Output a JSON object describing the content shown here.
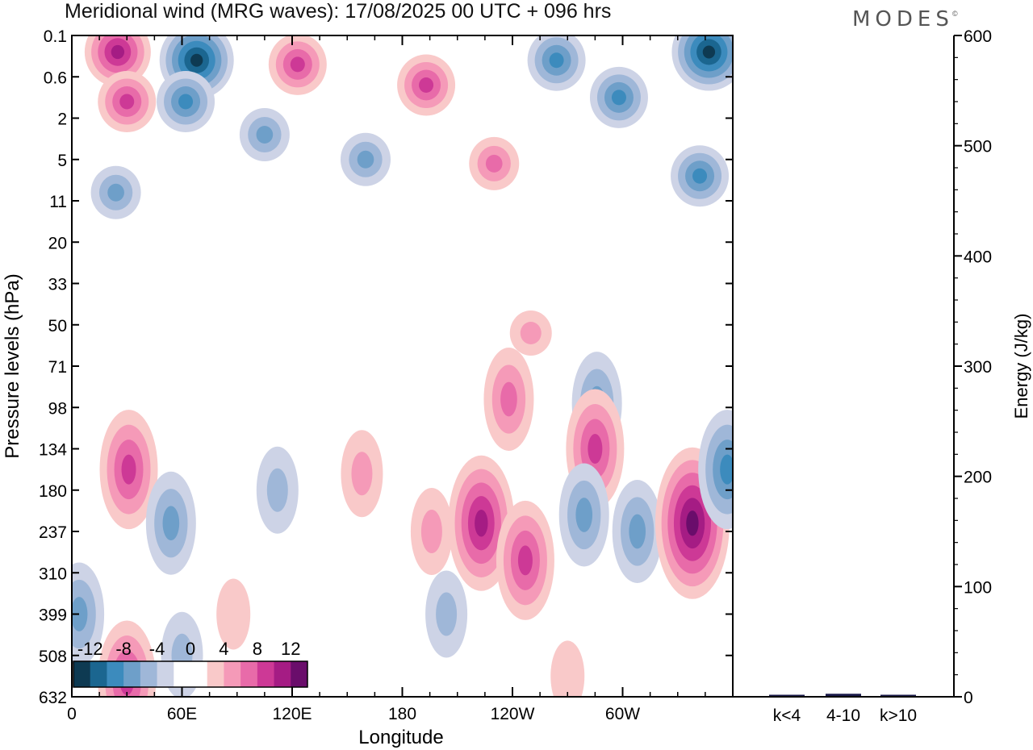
{
  "brand": {
    "logo_text": "MODES",
    "mark": "©"
  },
  "chart_data": [
    {
      "type": "heatmap",
      "title": "Meridional wind (MRG waves):  17/08/2025  00 UTC  + 096 hrs",
      "xlabel": "Longitude",
      "ylabel": "Pressure levels (hPa)",
      "x_ticks": [
        "0",
        "60E",
        "120E",
        "180",
        "120W",
        "60W"
      ],
      "x_tick_values": [
        0,
        60,
        120,
        180,
        240,
        300
      ],
      "xlim": [
        0,
        360
      ],
      "y_ticks": [
        "0.1",
        "0.6",
        "2",
        "5",
        "11",
        "20",
        "33",
        "50",
        "71",
        "98",
        "134",
        "180",
        "237",
        "310",
        "399",
        "508",
        "632"
      ],
      "y_order": "top-to-bottom",
      "colorbar": {
        "tick_labels": [
          "-12",
          "-8",
          "-4",
          "0",
          "4",
          "8",
          "12"
        ],
        "levels": [
          -14,
          -12,
          -10,
          -8,
          -6,
          -4,
          -2,
          0,
          2,
          4,
          6,
          8,
          10,
          12,
          14
        ],
        "colors": [
          "#0e3a52",
          "#1b6690",
          "#3c8bbd",
          "#6e9fc9",
          "#9fb7d8",
          "#cdd3e6",
          "#ffffff",
          "#ffffff",
          "#f9c9c9",
          "#f59ab8",
          "#e86ba9",
          "#cd3996",
          "#a51c84",
          "#6a0d6b"
        ]
      },
      "features": [
        {
          "lon": 25,
          "level_index": 0.4,
          "value": 10
        },
        {
          "lon": 30,
          "level_index": 1.6,
          "value": 8
        },
        {
          "lon": 68,
          "level_index": 0.6,
          "value": -13
        },
        {
          "lon": 62,
          "level_index": 1.6,
          "value": -9
        },
        {
          "lon": 105,
          "level_index": 2.4,
          "value": -6
        },
        {
          "lon": 123,
          "level_index": 0.7,
          "value": 8
        },
        {
          "lon": 193,
          "level_index": 1.2,
          "value": 9
        },
        {
          "lon": 230,
          "level_index": 3.1,
          "value": 6
        },
        {
          "lon": 264,
          "level_index": 0.6,
          "value": -8
        },
        {
          "lon": 298,
          "level_index": 1.5,
          "value": -8
        },
        {
          "lon": 347,
          "level_index": 0.4,
          "value": -13
        },
        {
          "lon": 342,
          "level_index": 3.4,
          "value": -8
        },
        {
          "lon": 24,
          "level_index": 3.8,
          "value": -7
        },
        {
          "lon": 160,
          "level_index": 3.0,
          "value": -6
        },
        {
          "lon": 250,
          "level_index": 7.2,
          "value": 5
        },
        {
          "lon": 238,
          "level_index": 8.8,
          "value": 7
        },
        {
          "lon": 286,
          "level_index": 8.9,
          "value": -7
        },
        {
          "lon": 285,
          "level_index": 10.0,
          "value": 9
        },
        {
          "lon": 31,
          "level_index": 10.5,
          "value": 9
        },
        {
          "lon": 54,
          "level_index": 11.8,
          "value": -6
        },
        {
          "lon": 158,
          "level_index": 10.6,
          "value": 5
        },
        {
          "lon": 112,
          "level_index": 11.0,
          "value": -4
        },
        {
          "lon": 196,
          "level_index": 12.0,
          "value": 4
        },
        {
          "lon": 223,
          "level_index": 11.8,
          "value": 10
        },
        {
          "lon": 247,
          "level_index": 12.7,
          "value": 8
        },
        {
          "lon": 279,
          "level_index": 11.6,
          "value": -6
        },
        {
          "lon": 308,
          "level_index": 12.0,
          "value": -6
        },
        {
          "lon": 338,
          "level_index": 11.8,
          "value": 12
        },
        {
          "lon": 357,
          "level_index": 10.5,
          "value": -9
        },
        {
          "lon": 4,
          "level_index": 14.0,
          "value": -6
        },
        {
          "lon": 30,
          "level_index": 15.6,
          "value": 8
        },
        {
          "lon": 60,
          "level_index": 15.0,
          "value": -4
        },
        {
          "lon": 88,
          "level_index": 14.0,
          "value": 3
        },
        {
          "lon": 204,
          "level_index": 14.0,
          "value": -4
        },
        {
          "lon": 270,
          "level_index": 15.5,
          "value": 3
        }
      ]
    },
    {
      "type": "bar",
      "ylabel": "Energy (J/kg)",
      "categories": [
        "k<4",
        "4-10",
        "k>10"
      ],
      "values": [
        0.5,
        2,
        0.5
      ],
      "ylim": [
        0,
        600
      ],
      "y_ticks": [
        "0",
        "100",
        "200",
        "300",
        "400",
        "500",
        "600"
      ],
      "bar_color": "#1a1a4a"
    }
  ]
}
